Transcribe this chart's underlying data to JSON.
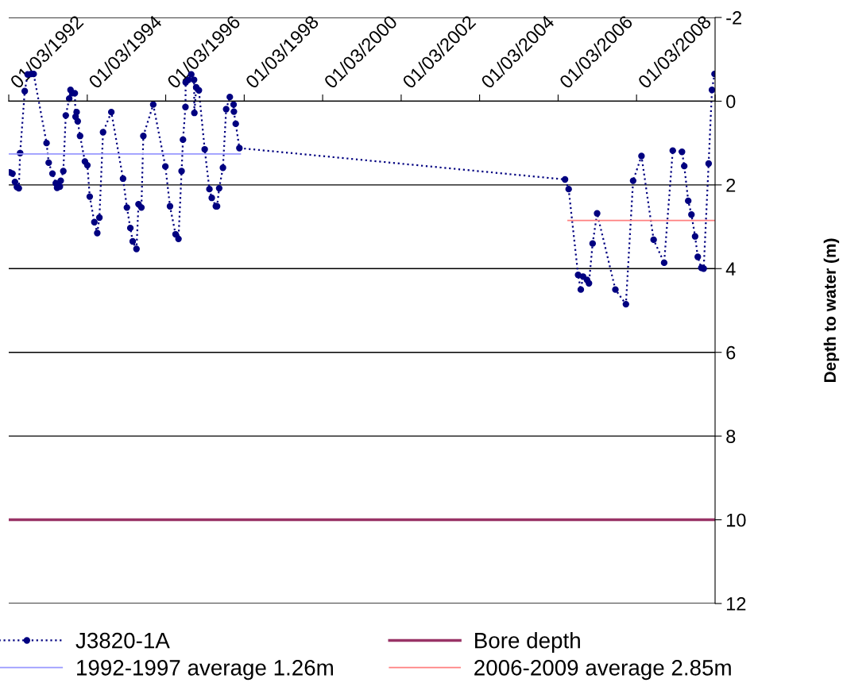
{
  "chart_data": {
    "type": "line",
    "ylabel": "Depth to water (m)",
    "xlim": [
      "1990-03-01",
      "2008-03-01"
    ],
    "xticks": [
      {
        "value": "1990-03-01",
        "label": null
      },
      {
        "value": "1992-03-01",
        "label": "01/03/1992"
      },
      {
        "value": "1994-03-01",
        "label": "01/03/1994"
      },
      {
        "value": "1996-03-01",
        "label": "01/03/1996"
      },
      {
        "value": "1998-03-01",
        "label": "01/03/1998"
      },
      {
        "value": "2000-03-01",
        "label": "01/03/2000"
      },
      {
        "value": "2002-03-01",
        "label": "01/03/2002"
      },
      {
        "value": "2004-03-01",
        "label": "01/03/2004"
      },
      {
        "value": "2006-03-01",
        "label": "01/03/2006"
      },
      {
        "value": "2008-03-01",
        "label": "01/03/2008"
      }
    ],
    "ylim": [
      12,
      -2
    ],
    "yticks": [
      -2,
      0,
      2,
      4,
      6,
      8,
      10,
      12
    ],
    "grid": "y",
    "legend": "bottom",
    "series": [
      {
        "name": "J3820-1A",
        "color": "#000080",
        "marker": "circle",
        "line_style": "dotted",
        "x": [
          "1990-03-10",
          "1990-04-05",
          "1990-04-28",
          "1990-05-16",
          "1990-06-03",
          "1990-06-15",
          "1990-07-28",
          "1990-08-24",
          "1990-09-27",
          "1990-10-19",
          "1991-02-16",
          "1991-03-08",
          "1991-04-12",
          "1991-05-13",
          "1991-05-25",
          "1991-06-20",
          "1991-06-28",
          "1991-07-22",
          "1991-08-14",
          "1991-09-15",
          "1991-09-27",
          "1991-10-14",
          "1991-11-06",
          "1991-11-13",
          "1991-11-23",
          "1991-12-03",
          "1991-12-25",
          "1992-02-08",
          "1992-03-02",
          "1992-03-24",
          "1992-05-06",
          "1992-06-02",
          "1992-06-22",
          "1992-07-26",
          "1992-10-11",
          "1993-01-28",
          "1993-03-05",
          "1993-04-06",
          "1993-04-28",
          "1993-06-02",
          "1993-06-21",
          "1993-07-18",
          "1993-08-05",
          "1993-11-05",
          "1994-02-26",
          "1994-04-10",
          "1994-06-01",
          "1994-06-28",
          "1994-07-27",
          "1994-08-09",
          "1994-09-01",
          "1994-09-03",
          "1994-09-29",
          "1994-10-25",
          "1994-11-20",
          "1994-11-23",
          "1994-12-10",
          "1995-01-04",
          "1995-02-27",
          "1995-04-12",
          "1995-05-04",
          "1995-06-11",
          "1995-06-22",
          "1995-07-12",
          "1995-08-16",
          "1995-09-15",
          "1995-10-19",
          "1995-11-23",
          "1995-11-26",
          "1995-12-13",
          "1996-01-16",
          "2004-05-04",
          "2004-06-07",
          "2004-09-03",
          "2004-09-28",
          "2004-10-19",
          "2004-11-25",
          "2004-12-13",
          "2005-01-16",
          "2005-02-27",
          "2005-08-16",
          "2005-11-22",
          "2006-01-28",
          "2006-04-16",
          "2006-08-07",
          "2006-11-13",
          "2007-02-01",
          "2007-04-28",
          "2007-05-19",
          "2007-06-25",
          "2007-07-25",
          "2007-08-28",
          "2007-09-22",
          "2007-10-25",
          "2007-11-16",
          "2008-01-01",
          "2008-02-01",
          "2008-02-25"
        ],
        "values": [
          1.7,
          1.73,
          1.93,
          2.05,
          2.08,
          1.24,
          -0.24,
          -0.64,
          -0.65,
          -0.65,
          1.0,
          1.47,
          1.73,
          1.96,
          2.07,
          2.04,
          1.9,
          1.67,
          0.34,
          -0.06,
          -0.27,
          -0.19,
          -0.19,
          0.37,
          0.26,
          0.48,
          0.83,
          1.44,
          1.53,
          2.28,
          2.89,
          3.15,
          2.78,
          0.74,
          0.26,
          1.85,
          2.54,
          3.03,
          3.35,
          3.53,
          2.46,
          2.54,
          0.83,
          0.08,
          1.56,
          2.51,
          3.18,
          3.29,
          1.67,
          0.92,
          0.14,
          -0.45,
          -0.51,
          -0.64,
          -0.51,
          0.28,
          -0.33,
          -0.26,
          1.15,
          2.1,
          2.31,
          2.51,
          2.51,
          2.08,
          1.59,
          0.19,
          -0.1,
          0.08,
          0.25,
          0.54,
          1.12,
          1.87,
          2.1,
          4.15,
          4.5,
          4.19,
          4.27,
          4.35,
          3.4,
          2.68,
          4.5,
          4.85,
          1.9,
          1.31,
          3.31,
          3.86,
          1.18,
          1.21,
          1.55,
          2.38,
          2.71,
          3.23,
          3.72,
          3.98,
          4.0,
          1.49,
          -0.27,
          -0.65
        ]
      },
      {
        "name": "1992-1997 average 1.26m",
        "color": "#9999ff",
        "marker": "none",
        "line_style": "solid",
        "x": [
          "1990-03-01",
          "1996-01-25"
        ],
        "values": [
          1.26,
          1.26
        ]
      },
      {
        "name": "Bore depth",
        "color": "#993366",
        "marker": "none",
        "line_style": "solid",
        "x": [
          "1990-03-01",
          "2008-03-01"
        ],
        "values": [
          10,
          10
        ]
      },
      {
        "name": "2006-2009 average 2.85m",
        "color": "#ff8080",
        "marker": "none",
        "line_style": "solid",
        "x": [
          "2004-06-01",
          "2008-03-01"
        ],
        "values": [
          2.85,
          2.85
        ]
      }
    ]
  }
}
